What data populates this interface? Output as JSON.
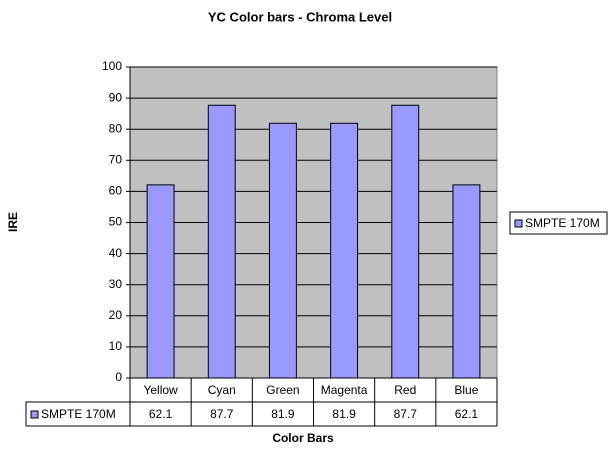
{
  "chart_data": {
    "type": "bar",
    "title": "YC Color bars - Chroma Level",
    "x_label": "Color Bars",
    "y_label": "IRE",
    "categories": [
      "Yellow",
      "Cyan",
      "Green",
      "Magenta",
      "Red",
      "Blue"
    ],
    "series": [
      {
        "name": "SMPTE 170M",
        "color": "#9999ff",
        "values": [
          62.1,
          87.7,
          81.9,
          81.9,
          87.7,
          62.1
        ]
      }
    ],
    "ylim": [
      0,
      100
    ],
    "yticks": [
      0,
      10,
      20,
      30,
      40,
      50,
      60,
      70,
      80,
      90,
      100
    ],
    "grid": true,
    "legend": "right",
    "data_table": true
  }
}
